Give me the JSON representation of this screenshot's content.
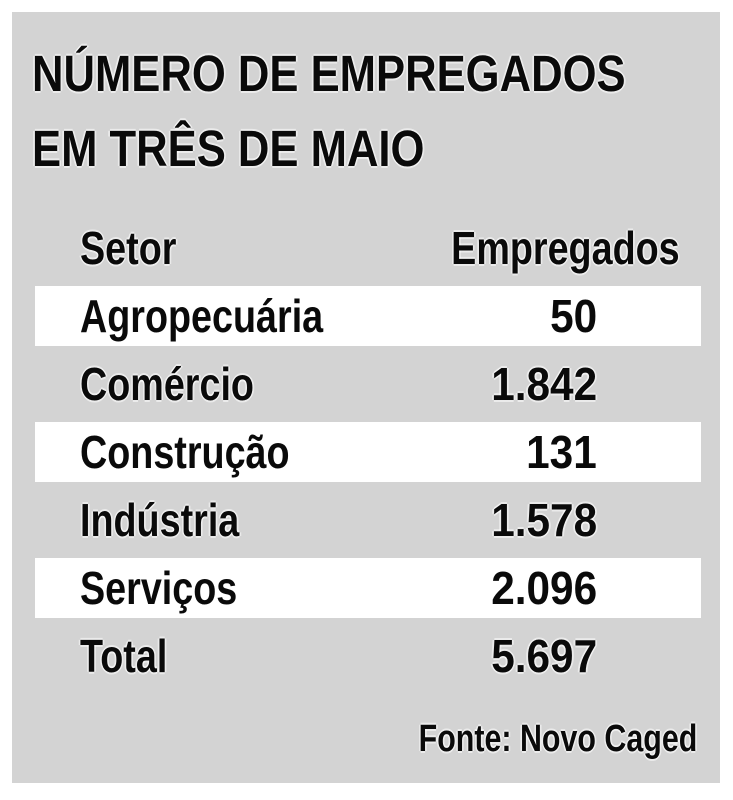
{
  "panel": {
    "title_line1": "NÚMERO DE EMPREGADOS",
    "title_line2": "EM TRÊS DE MAIO",
    "source": "Fonte: Novo Caged"
  },
  "table": {
    "headers": {
      "sector": "Setor",
      "employees": "Empregados"
    },
    "rows": [
      {
        "sector": "Agropecuária",
        "employees": "50",
        "highlighted": true
      },
      {
        "sector": "Comércio",
        "employees": "1.842",
        "highlighted": false
      },
      {
        "sector": "Construção",
        "employees": "131",
        "highlighted": true
      },
      {
        "sector": "Indústria",
        "employees": "1.578",
        "highlighted": false
      },
      {
        "sector": "Serviços",
        "employees": "2.096",
        "highlighted": true
      },
      {
        "sector": "Total",
        "employees": "5.697",
        "highlighted": false
      }
    ]
  },
  "colors": {
    "page_bg": "#ffffff",
    "panel_bg": "#d3d3d3",
    "stripe_bg": "#ffffff",
    "text": "#0a0a0a"
  },
  "chart_data": {
    "type": "table",
    "title": "NÚMERO DE EMPREGADOS EM TRÊS DE MAIO",
    "columns": [
      "Setor",
      "Empregados"
    ],
    "categories": [
      "Agropecuária",
      "Comércio",
      "Construção",
      "Indústria",
      "Serviços",
      "Total"
    ],
    "values": [
      50,
      1842,
      131,
      1578,
      2096,
      5697
    ],
    "source": "Fonte: Novo Caged"
  }
}
